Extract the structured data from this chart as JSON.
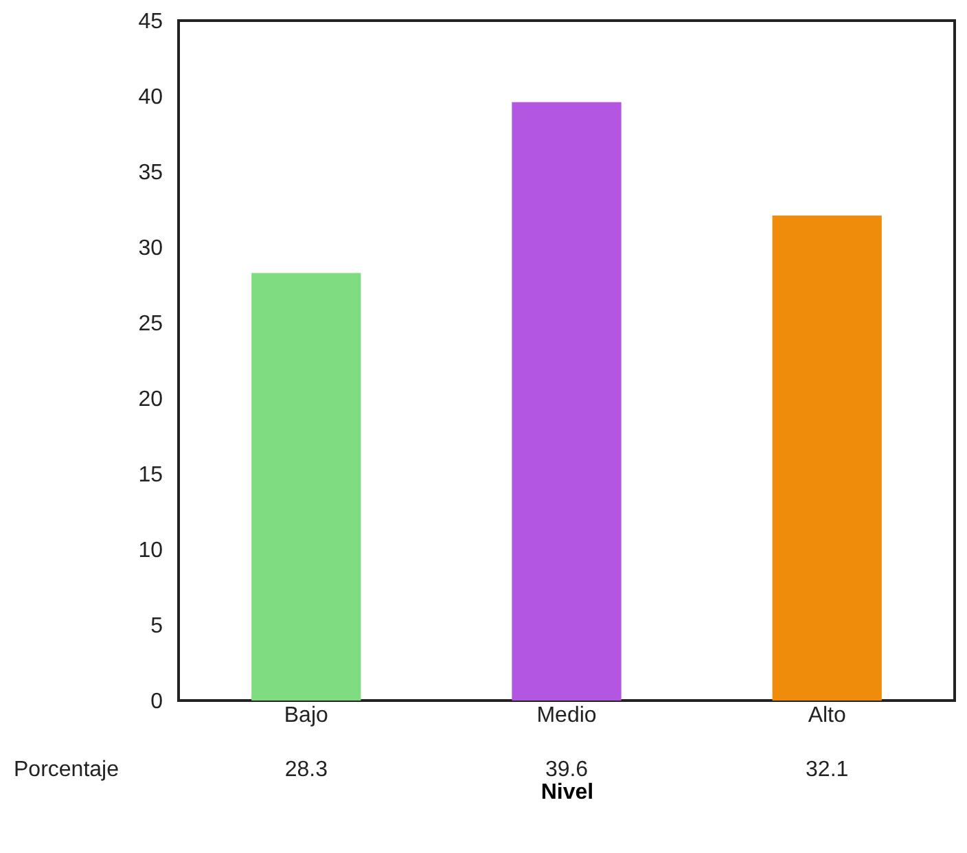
{
  "chart_data": {
    "type": "bar",
    "xlabel": "Nivel",
    "categories": [
      "Bajo",
      "Medio",
      "Alto"
    ],
    "values": [
      28.3,
      39.6,
      32.1
    ],
    "colors": [
      "#7fdc80",
      "#b356e2",
      "#f08c0c"
    ],
    "ylim": [
      0,
      45
    ],
    "yticks": [
      0,
      5,
      10,
      15,
      20,
      25,
      30,
      35,
      40,
      45
    ],
    "grid": false,
    "data_labels": true,
    "annotations": [
      "Porcentaje"
    ]
  }
}
